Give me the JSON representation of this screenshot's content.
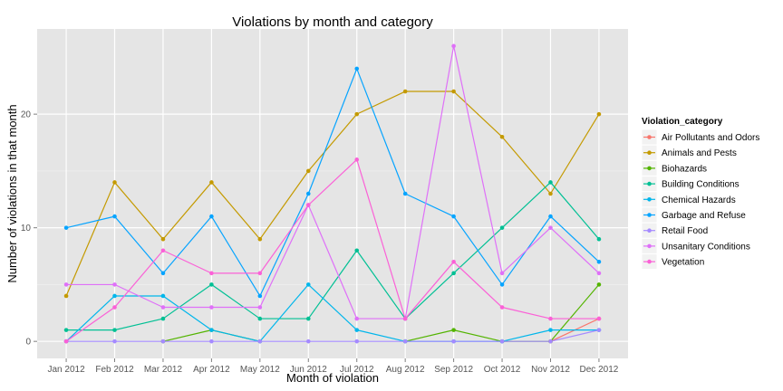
{
  "chart_data": {
    "type": "line",
    "title": "Violations by month and category",
    "xlabel": "Month of violation",
    "ylabel": "Number of violations in that month",
    "categories": [
      "Jan 2012",
      "Feb 2012",
      "Mar 2012",
      "Apr 2012",
      "May 2012",
      "Jun 2012",
      "Jul 2012",
      "Aug 2012",
      "Sep 2012",
      "Oct 2012",
      "Nov 2012",
      "Dec 2012"
    ],
    "ylim": [
      -1.5,
      27.5
    ],
    "yticks": [
      0,
      10,
      20
    ],
    "grid": true,
    "legend_position": "right",
    "legend_title": "Violation_category",
    "series": [
      {
        "name": "Air Pollutants and Odors",
        "color": "#F8766D",
        "values": [
          0,
          null,
          null,
          null,
          null,
          null,
          null,
          null,
          null,
          null,
          0,
          2
        ]
      },
      {
        "name": "Animals and Pests",
        "color": "#C49A00",
        "values": [
          4,
          14,
          9,
          14,
          9,
          15,
          20,
          22,
          22,
          18,
          13,
          20
        ]
      },
      {
        "name": "Biohazards",
        "color": "#53B400",
        "values": [
          null,
          null,
          0,
          1,
          0,
          null,
          null,
          0,
          1,
          0,
          0,
          5
        ]
      },
      {
        "name": "Building Conditions",
        "color": "#00C094",
        "values": [
          1,
          1,
          2,
          5,
          2,
          2,
          8,
          2,
          6,
          10,
          14,
          9
        ]
      },
      {
        "name": "Chemical Hazards",
        "color": "#00B6EB",
        "values": [
          0,
          4,
          4,
          1,
          0,
          5,
          1,
          0,
          0,
          0,
          1,
          1
        ]
      },
      {
        "name": "Garbage and Refuse",
        "color": "#06A4FF",
        "values": [
          10,
          11,
          6,
          11,
          4,
          13,
          24,
          13,
          11,
          5,
          11,
          7
        ]
      },
      {
        "name": "Retail Food",
        "color": "#A58AFF",
        "values": [
          0,
          0,
          0,
          0,
          0,
          0,
          0,
          0,
          0,
          0,
          0,
          1
        ]
      },
      {
        "name": "Unsanitary Conditions",
        "color": "#DF70F8",
        "values": [
          5,
          5,
          3,
          3,
          3,
          12,
          2,
          2,
          26,
          6,
          10,
          6
        ]
      },
      {
        "name": "Vegetation",
        "color": "#FB61D7",
        "values": [
          0,
          3,
          8,
          6,
          6,
          12,
          16,
          2,
          7,
          3,
          2,
          2
        ]
      }
    ]
  }
}
